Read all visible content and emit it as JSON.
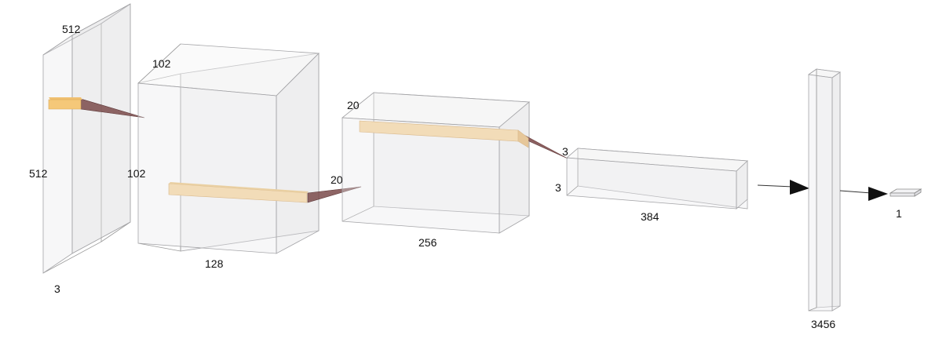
{
  "layers": [
    {
      "depth_label": "512",
      "height_label": "512",
      "width_label": "3"
    },
    {
      "depth_label": "102",
      "height_label": "102",
      "width_label": "128"
    },
    {
      "depth_label": "20",
      "height_label": "20",
      "width_label": "256"
    },
    {
      "depth_label": "3",
      "height_label": "3",
      "width_label": "384"
    },
    {
      "width_label": "3456"
    },
    {
      "width_label": "1"
    }
  ],
  "colors": {
    "kernel_front": "#f5c879",
    "kernel_light": "#f2dcb8",
    "kernel_side": "#e6b56e",
    "pyramid": "#7a4a4a",
    "arrow": "#111111"
  }
}
